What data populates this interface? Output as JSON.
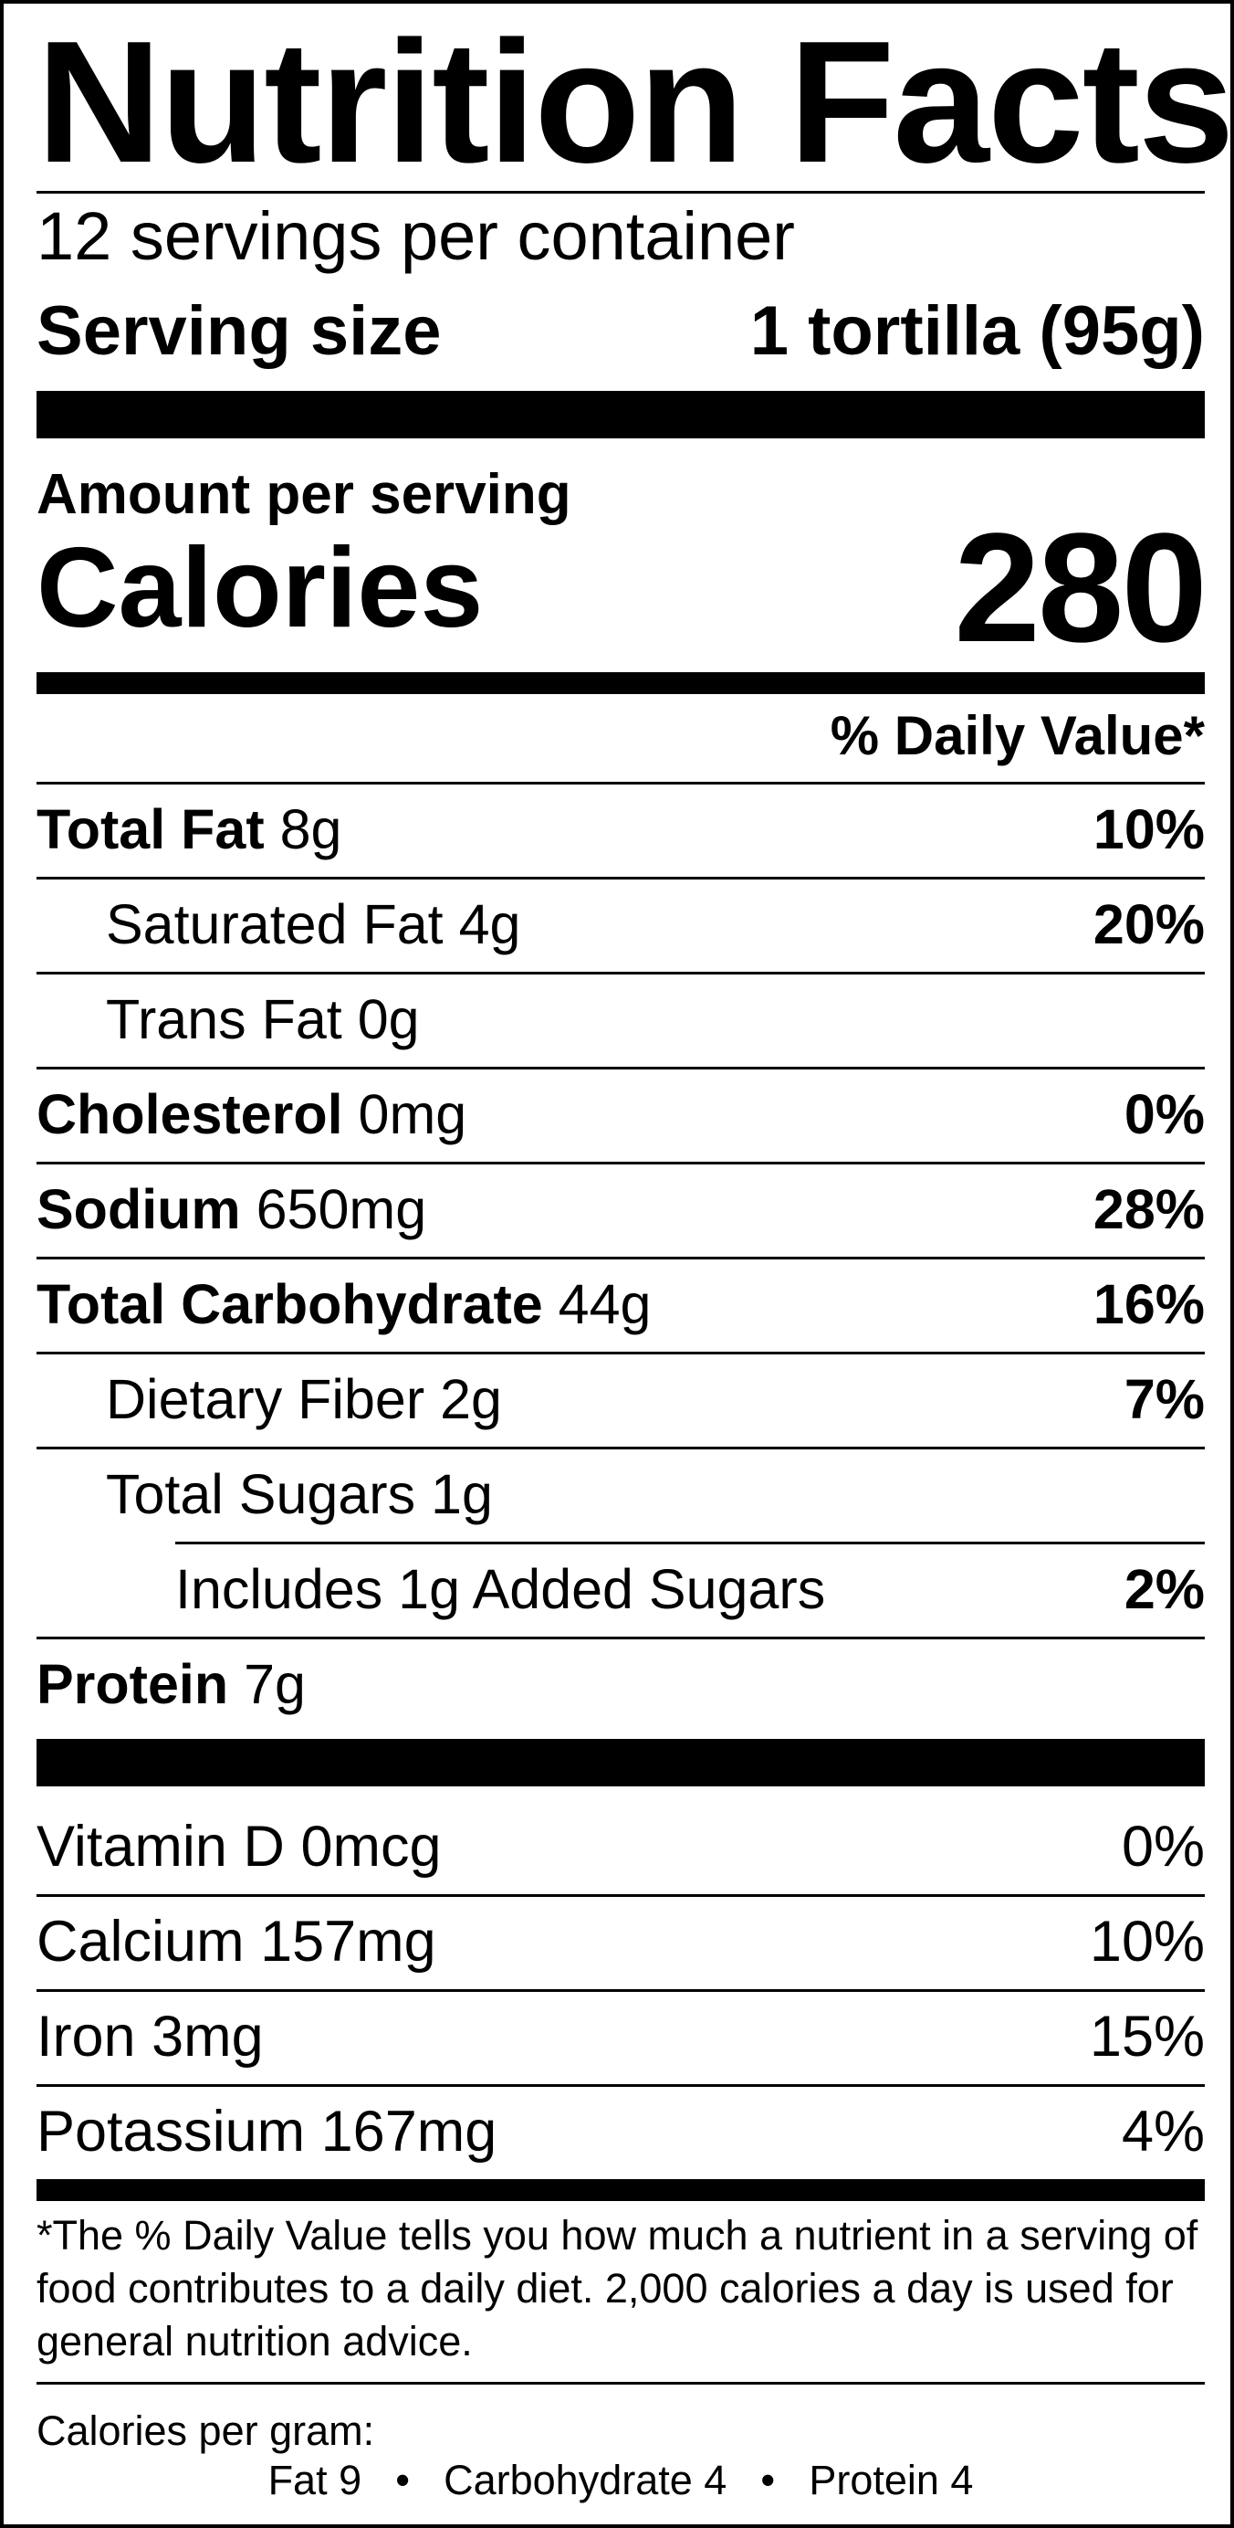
{
  "title": "Nutrition Facts",
  "servings_per_container": "12 servings per container",
  "serving_size": {
    "label": "Serving size",
    "value": "1 tortilla (95g)"
  },
  "amount_per_serving": "Amount per serving",
  "calories": {
    "label": "Calories",
    "value": "280"
  },
  "dv_header": "% Daily Value*",
  "nutrients": [
    {
      "name": "Total Fat",
      "amount": "8g",
      "pct": "10%"
    },
    {
      "name": "Saturated Fat",
      "amount": "4g",
      "pct": "20%"
    },
    {
      "name": "Trans Fat",
      "amount": "0g",
      "pct": ""
    },
    {
      "name": "Cholesterol",
      "amount": "0mg",
      "pct": "0%"
    },
    {
      "name": "Sodium",
      "amount": "650mg",
      "pct": "28%"
    },
    {
      "name": "Total Carbohydrate",
      "amount": "44g",
      "pct": "16%"
    },
    {
      "name": "Dietary Fiber",
      "amount": "2g",
      "pct": "7%"
    },
    {
      "name": "Total Sugars",
      "amount": "1g",
      "pct": ""
    },
    {
      "name": "Includes 1g Added Sugars",
      "amount": "",
      "pct": "2%"
    },
    {
      "name": "Protein",
      "amount": "7g",
      "pct": ""
    }
  ],
  "vitamins": [
    {
      "name": "Vitamin D",
      "amount": "0mcg",
      "pct": "0%"
    },
    {
      "name": "Calcium",
      "amount": "157mg",
      "pct": "10%"
    },
    {
      "name": "Iron",
      "amount": "3mg",
      "pct": "15%"
    },
    {
      "name": "Potassium",
      "amount": "167mg",
      "pct": "4%"
    }
  ],
  "footnote": "*The % Daily Value tells you how much a nutrient in a serving of food contributes to a daily diet. 2,000 calories a day is used for general nutrition advice.",
  "calories_per_gram": {
    "label": "Calories per gram:",
    "fat": "Fat 9",
    "carbohydrate": "Carbohydrate 4",
    "protein": "Protein 4",
    "separator": "•"
  }
}
